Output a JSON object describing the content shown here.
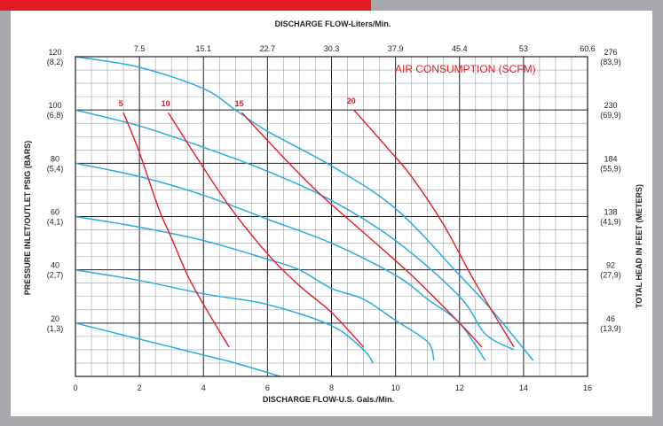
{
  "chart_data": {
    "type": "line",
    "title": "",
    "xlabel": "DISCHARGE FLOW-U.S. Gals./Min.",
    "x2label": "DISCHARGE FLOW-Liters/Min.",
    "ylabel": "PRESSURE INLET/OUTLET PSIG (BARS)",
    "y2label": "TOTAL HEAD IN FEET (METERS)",
    "annotation": "AIR CONSUMPTION (SCFM)",
    "xlim": [
      0,
      16
    ],
    "ylim": [
      0,
      120
    ],
    "x_ticks": [
      {
        "value": 0,
        "label": "0"
      },
      {
        "value": 2,
        "label": "2"
      },
      {
        "value": 4,
        "label": "4"
      },
      {
        "value": 6,
        "label": "6"
      },
      {
        "value": 8,
        "label": "8"
      },
      {
        "value": 10,
        "label": "10"
      },
      {
        "value": 12,
        "label": "12"
      },
      {
        "value": 14,
        "label": "14"
      },
      {
        "value": 16,
        "label": "16"
      }
    ],
    "x2_ticks": [
      {
        "value": 2,
        "label": "7.5"
      },
      {
        "value": 4,
        "label": "15.1"
      },
      {
        "value": 6,
        "label": "22.7"
      },
      {
        "value": 8,
        "label": "30.3"
      },
      {
        "value": 10,
        "label": "37.9"
      },
      {
        "value": 12,
        "label": "45.4"
      },
      {
        "value": 14,
        "label": "53"
      },
      {
        "value": 16,
        "label": "60.6"
      }
    ],
    "y_ticks": [
      {
        "value": 120,
        "label": "120",
        "sub": "(8,2)"
      },
      {
        "value": 100,
        "label": "100",
        "sub": "(6,8)"
      },
      {
        "value": 80,
        "label": "80",
        "sub": "(5,4)"
      },
      {
        "value": 60,
        "label": "60",
        "sub": "(4,1)"
      },
      {
        "value": 40,
        "label": "40",
        "sub": "(2,7)"
      },
      {
        "value": 20,
        "label": "20",
        "sub": "(1,3)"
      }
    ],
    "y2_ticks": [
      {
        "value": 120,
        "label": "276",
        "sub": "(83,9)"
      },
      {
        "value": 100,
        "label": "230",
        "sub": "(69,9)"
      },
      {
        "value": 80,
        "label": "184",
        "sub": "(55,9)"
      },
      {
        "value": 60,
        "label": "138",
        "sub": "(41,9)"
      },
      {
        "value": 40,
        "label": "92",
        "sub": "(27,9)"
      },
      {
        "value": 20,
        "label": "46",
        "sub": "(13,9)"
      }
    ],
    "pressure_curves": [
      {
        "color": "#29abe2",
        "points": [
          [
            0,
            120
          ],
          [
            2,
            116
          ],
          [
            4,
            108
          ],
          [
            5,
            100
          ],
          [
            6,
            92
          ],
          [
            8,
            79
          ],
          [
            10,
            63
          ],
          [
            12,
            38
          ],
          [
            13,
            25
          ],
          [
            14.3,
            6
          ]
        ]
      },
      {
        "color": "#29abe2",
        "points": [
          [
            0,
            100
          ],
          [
            2,
            94
          ],
          [
            4,
            86
          ],
          [
            6,
            77
          ],
          [
            8,
            66
          ],
          [
            10,
            51
          ],
          [
            12,
            30
          ],
          [
            12.8,
            16
          ],
          [
            13.7,
            10
          ]
        ]
      },
      {
        "color": "#29abe2",
        "points": [
          [
            0,
            80
          ],
          [
            2,
            75
          ],
          [
            4,
            68
          ],
          [
            6,
            59
          ],
          [
            8,
            50
          ],
          [
            10,
            38
          ],
          [
            11,
            29
          ],
          [
            12,
            20
          ],
          [
            12.8,
            6
          ]
        ]
      },
      {
        "color": "#29abe2",
        "points": [
          [
            0,
            60
          ],
          [
            2,
            56
          ],
          [
            4,
            51
          ],
          [
            6,
            44
          ],
          [
            7,
            40
          ],
          [
            8,
            33
          ],
          [
            9,
            29
          ],
          [
            10,
            21
          ],
          [
            11,
            13
          ],
          [
            11.2,
            6
          ]
        ]
      },
      {
        "color": "#29abe2",
        "points": [
          [
            0,
            40
          ],
          [
            2,
            36
          ],
          [
            4,
            31
          ],
          [
            6,
            27
          ],
          [
            8,
            19
          ],
          [
            9,
            10
          ],
          [
            9.3,
            5
          ]
        ]
      },
      {
        "color": "#29abe2",
        "points": [
          [
            0,
            20
          ],
          [
            2,
            14
          ],
          [
            4,
            8
          ],
          [
            5,
            5
          ],
          [
            6.4,
            0
          ]
        ]
      }
    ],
    "air_curves": [
      {
        "label": "5",
        "color": "#e31b23",
        "points": [
          [
            1.5,
            99
          ],
          [
            2,
            84
          ],
          [
            2.6,
            63
          ],
          [
            3,
            52
          ],
          [
            3.5,
            38
          ],
          [
            4,
            27
          ],
          [
            4.8,
            11
          ]
        ]
      },
      {
        "label": "10",
        "color": "#e31b23",
        "points": [
          [
            2.9,
            99
          ],
          [
            3.8,
            82
          ],
          [
            4.8,
            64
          ],
          [
            6,
            46
          ],
          [
            7,
            34
          ],
          [
            8,
            24
          ],
          [
            9,
            11
          ]
        ]
      },
      {
        "label": "15",
        "color": "#e31b23",
        "points": [
          [
            5.2,
            99
          ],
          [
            6.2,
            86
          ],
          [
            7.5,
            70
          ],
          [
            9,
            54
          ],
          [
            10.5,
            38
          ],
          [
            12,
            20
          ],
          [
            12.7,
            11
          ]
        ]
      },
      {
        "label": "20",
        "color": "#e31b23",
        "points": [
          [
            8.7,
            100
          ],
          [
            9.8,
            85
          ],
          [
            10.5,
            75
          ],
          [
            11.5,
            57
          ],
          [
            12.5,
            35
          ],
          [
            13.7,
            11
          ]
        ]
      }
    ]
  }
}
